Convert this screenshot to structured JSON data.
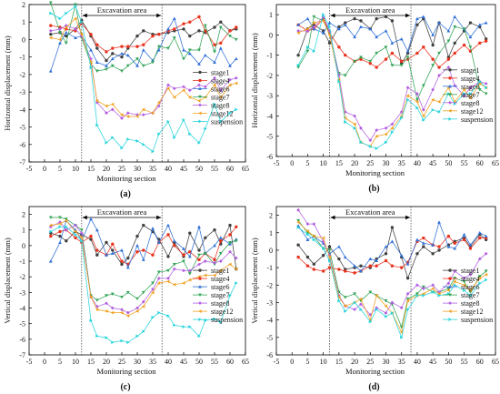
{
  "figure": {
    "series_colors": [
      "#404040",
      "#e8321e",
      "#2f6fd6",
      "#33a457",
      "#b25fe0",
      "#f0a020",
      "#28d4dc"
    ]
  },
  "chart_data": [
    {
      "type": "line",
      "panel_label": "(a)",
      "xlabel": "Monitoring section",
      "ylabel": "Horizontal displacement (mm)",
      "xlim": [
        -5,
        65
      ],
      "ylim": [
        -7,
        2
      ],
      "xticks": [
        -5,
        0,
        5,
        10,
        15,
        20,
        25,
        30,
        35,
        40,
        45,
        50,
        55,
        60,
        65
      ],
      "yticks": [
        -7,
        -6,
        -5,
        -4,
        -3,
        -2,
        -1,
        0,
        1,
        2
      ],
      "annotation": "Excavation area",
      "excavation_bounds": [
        12,
        38
      ],
      "legend_position": "right",
      "x": [
        2,
        5,
        7,
        10,
        12,
        15,
        17,
        20,
        22,
        25,
        27,
        30,
        32,
        35,
        37,
        40,
        42,
        45,
        47,
        50,
        52,
        55,
        57,
        60,
        62
      ],
      "series": [
        {
          "name": "stage1",
          "values": [
            0.3,
            0.4,
            0.2,
            0.6,
            1.1,
            0.2,
            -0.5,
            -1.2,
            -0.8,
            -1.0,
            -0.5,
            0.2,
            0.5,
            0.3,
            0.3,
            0.4,
            0.5,
            0.6,
            0.2,
            0.5,
            0.4,
            0.7,
            1.0,
            0.5,
            0.6
          ]
        },
        {
          "name": "stage4",
          "values": [
            0.8,
            0.7,
            0.6,
            0.5,
            0.9,
            0.3,
            -0.3,
            -0.7,
            -0.5,
            -0.4,
            -0.4,
            -0.4,
            -0.3,
            0.2,
            0.3,
            0.5,
            0.6,
            0.9,
            1.0,
            1.3,
            0.5,
            -0.3,
            -0.2,
            0.5,
            0.7
          ]
        },
        {
          "name": "stage6",
          "values": [
            -1.8,
            -0.2,
            0.4,
            0.1,
            0.2,
            -0.6,
            -1.3,
            -1.5,
            -1.1,
            -0.8,
            -0.9,
            -1.5,
            -0.6,
            -1.2,
            -0.6,
            0.6,
            1.2,
            -0.6,
            -0.8,
            -1.4,
            -0.9,
            -1.3,
            -0.5,
            -1.5,
            -1.1
          ]
        },
        {
          "name": "stage7",
          "values": [
            2.1,
            0.4,
            -0.2,
            2.0,
            0.1,
            -1.4,
            -1.8,
            -1.7,
            -1.5,
            -1.8,
            -1.5,
            -1.1,
            -1.5,
            -1.3,
            -0.4,
            -0.5,
            0.1,
            -1.1,
            -0.6,
            -0.6,
            0.8,
            -0.7,
            0.7,
            0.2,
            0.0
          ]
        },
        {
          "name": "stage8",
          "values": [
            0.5,
            0.6,
            0.8,
            0.6,
            0.2,
            -1.1,
            -3.6,
            -4.2,
            -4.0,
            -4.5,
            -4.2,
            -4.3,
            -4.3,
            -4.2,
            -3.8,
            -2.6,
            -2.8,
            -2.7,
            -2.9,
            -2.6,
            -2.7,
            -2.2,
            -2.9,
            -2.3,
            -2.2
          ]
        },
        {
          "name": "stage12",
          "values": [
            0.1,
            0.0,
            0.7,
            1.2,
            0.3,
            -1.3,
            -3.5,
            -3.8,
            -3.7,
            -4.3,
            -4.4,
            -4.4,
            -4.0,
            -4.2,
            -3.6,
            -2.8,
            -3.3,
            -2.9,
            -3.3,
            -3.5,
            -3.3,
            -2.6,
            -3.3,
            -2.6,
            -2.5
          ]
        },
        {
          "name": "suspension",
          "values": [
            1.5,
            1.2,
            1.5,
            1.9,
            1.0,
            -1.6,
            -4.9,
            -5.9,
            -5.6,
            -6.2,
            -5.7,
            -5.8,
            -6.0,
            -6.4,
            -5.4,
            -4.7,
            -5.6,
            -4.6,
            -5.4,
            -5.9,
            -5.1,
            -3.7,
            -4.7,
            -4.2,
            -4.0
          ]
        }
      ]
    },
    {
      "type": "line",
      "panel_label": "(b)",
      "xlabel": "Monitoring section",
      "ylabel": "Horizontal displacement (mm)",
      "xlim": [
        -5,
        65
      ],
      "ylim": [
        -6,
        1.5
      ],
      "xticks": [
        -5,
        0,
        5,
        10,
        15,
        20,
        25,
        30,
        35,
        40,
        45,
        50,
        55,
        60,
        65
      ],
      "yticks": [
        -6,
        -5,
        -4,
        -3,
        -2,
        -1,
        0,
        1
      ],
      "annotation": "Excavation area",
      "excavation_bounds": [
        12,
        38
      ],
      "legend_position": "right",
      "x": [
        2,
        5,
        7,
        10,
        12,
        15,
        17,
        20,
        22,
        25,
        27,
        30,
        32,
        35,
        37,
        40,
        42,
        45,
        47,
        50,
        52,
        55,
        57,
        60,
        62
      ],
      "series": [
        {
          "name": "stage1",
          "values": [
            -1.0,
            0.3,
            0.5,
            0.2,
            -0.4,
            0.4,
            0.6,
            0.8,
            0.7,
            0.3,
            0.8,
            0.9,
            0.7,
            -1.4,
            -0.9,
            0.5,
            0.8,
            -0.5,
            0.6,
            -1.1,
            -0.4,
            0.2,
            0.6,
            0.4,
            -0.2
          ]
        },
        {
          "name": "stage4",
          "values": [
            0.5,
            0.2,
            0.3,
            0.8,
            0.1,
            -0.6,
            -1.0,
            -1.3,
            -1.2,
            -1.4,
            -1.6,
            -1.2,
            -0.9,
            -1.3,
            -1.2,
            -0.9,
            -0.6,
            -1.2,
            -1.6,
            -1.2,
            -0.9,
            -0.5,
            -0.8,
            -0.4,
            -0.3
          ]
        },
        {
          "name": "stage6",
          "values": [
            0.5,
            0.8,
            0.3,
            0.1,
            0.6,
            0.3,
            0.5,
            -0.1,
            0.4,
            0.3,
            -0.1,
            0.2,
            -0.4,
            -0.2,
            -0.8,
            0.8,
            0.9,
            0.0,
            0.6,
            0.2,
            0.9,
            0.3,
            -0.1,
            0.5,
            0.6
          ]
        },
        {
          "name": "stage7",
          "values": [
            -1.6,
            -0.8,
            0.9,
            0.7,
            0.1,
            -1.9,
            -2.0,
            -1.3,
            -1.1,
            -1.3,
            -0.9,
            -0.6,
            -1.5,
            -1.5,
            -1.1,
            -3.2,
            -2.5,
            -1.5,
            -0.9,
            -0.3,
            0.4,
            0.3,
            -0.6,
            -2.7,
            -2.9
          ]
        },
        {
          "name": "stage8",
          "values": [
            0.2,
            0.2,
            0.4,
            0.9,
            0.2,
            -2.0,
            -3.8,
            -4.0,
            -4.6,
            -5.2,
            -4.7,
            -4.6,
            -4.4,
            -3.8,
            -2.6,
            -2.9,
            -3.7,
            -2.7,
            -2.0,
            -1.6,
            -2.5,
            -3.0,
            -2.6,
            -2.3,
            -2.4
          ]
        },
        {
          "name": "stage12",
          "values": [
            0.1,
            0.3,
            0.6,
            0.7,
            0.0,
            -2.2,
            -4.1,
            -4.4,
            -5.3,
            -5.5,
            -5.0,
            -4.9,
            -4.6,
            -4.0,
            -3.0,
            -3.3,
            -4.0,
            -3.2,
            -3.3,
            -2.6,
            -3.3,
            -2.7,
            -3.1,
            -2.4,
            -2.6
          ]
        },
        {
          "name": "suspension",
          "values": [
            -1.5,
            -0.6,
            -0.8,
            1.0,
            0.4,
            -2.3,
            -4.3,
            -4.6,
            -5.3,
            -5.5,
            -5.6,
            -5.3,
            -4.8,
            -4.1,
            -3.2,
            -3.6,
            -4.2,
            -3.7,
            -3.8,
            -2.9,
            -3.4,
            -2.9,
            -2.9,
            -2.3,
            -2.6
          ]
        }
      ]
    },
    {
      "type": "line",
      "panel_label": "(c)",
      "xlabel": "Monitoring section",
      "ylabel": "Vertical displacement (mm)",
      "xlim": [
        -5,
        65
      ],
      "ylim": [
        -7,
        2.5
      ],
      "xticks": [
        -5,
        0,
        5,
        10,
        15,
        20,
        25,
        30,
        35,
        40,
        45,
        50,
        55,
        60,
        65
      ],
      "yticks": [
        -7,
        -6,
        -5,
        -4,
        -3,
        -2,
        -1,
        0,
        1,
        2
      ],
      "annotation": "Excavation area",
      "excavation_bounds": [
        12,
        38
      ],
      "legend_position": "right",
      "x": [
        2,
        5,
        7,
        10,
        12,
        15,
        17,
        20,
        22,
        25,
        27,
        30,
        32,
        35,
        37,
        40,
        42,
        45,
        47,
        50,
        52,
        55,
        57,
        60,
        62
      ],
      "series": [
        {
          "name": "stage1",
          "values": [
            0.8,
            0.6,
            0.3,
            0.9,
            0.7,
            0.4,
            -0.6,
            0.2,
            -0.3,
            -1.2,
            -0.8,
            0.6,
            1.3,
            0.9,
            0.4,
            -0.7,
            0.2,
            -0.7,
            0.8,
            -0.3,
            0.5,
            1.0,
            0.1,
            1.3,
            -1.5
          ]
        },
        {
          "name": "stage4",
          "values": [
            0.6,
            0.9,
            1.0,
            0.5,
            0.2,
            0.6,
            -0.3,
            -0.6,
            0.1,
            -1.0,
            -1.2,
            -0.4,
            -0.3,
            -0.6,
            0.2,
            0.7,
            0.0,
            -0.6,
            -0.4,
            -0.9,
            -0.5,
            -0.9,
            0.3,
            0.7,
            1.2
          ]
        },
        {
          "name": "stage6",
          "values": [
            -1.0,
            0.2,
            1.6,
            1.0,
            0.3,
            1.7,
            1.0,
            -0.6,
            -0.5,
            -0.3,
            -1.4,
            0.0,
            -0.9,
            1.1,
            0.2,
            1.3,
            0.3,
            -0.2,
            -0.7,
            1.2,
            -0.5,
            0.0,
            0.5,
            0.1,
            0.4
          ]
        },
        {
          "name": "stage7",
          "values": [
            1.8,
            1.8,
            1.7,
            1.3,
            1.0,
            -3.2,
            -3.5,
            -3.2,
            -3.1,
            -3.3,
            -3.0,
            -3.4,
            -3.0,
            -2.4,
            -1.7,
            -1.6,
            -1.2,
            -1.0,
            -1.8,
            -0.6,
            -0.5,
            -1.2,
            -0.5,
            0.2,
            0.3
          ]
        },
        {
          "name": "stage8",
          "values": [
            1.2,
            1.5,
            1.0,
            1.3,
            0.8,
            -3.3,
            -3.9,
            -3.7,
            -4.0,
            -4.1,
            -4.3,
            -4.0,
            -3.6,
            -2.8,
            -2.1,
            -2.1,
            -1.5,
            -1.6,
            -1.6,
            -1.2,
            -1.0,
            -1.1,
            -1.0,
            -0.4,
            -0.8
          ]
        },
        {
          "name": "stage12",
          "values": [
            1.3,
            1.4,
            1.6,
            0.9,
            0.5,
            -3.3,
            -4.1,
            -4.2,
            -4.3,
            -4.3,
            -4.5,
            -4.2,
            -3.9,
            -3.0,
            -2.4,
            -2.3,
            -2.5,
            -2.4,
            -2.2,
            -2.0,
            -1.9,
            -1.9,
            -1.6,
            -1.2,
            -1.5
          ]
        },
        {
          "name": "suspension",
          "values": [
            0.9,
            1.2,
            1.2,
            0.7,
            0.3,
            -4.8,
            -5.8,
            -5.9,
            -6.2,
            -6.1,
            -6.2,
            -5.8,
            -5.5,
            -4.6,
            -4.3,
            -4.5,
            -5.1,
            -5.2,
            -5.2,
            -5.8,
            -4.8,
            -4.7,
            -4.9,
            -3.2,
            -2.4
          ]
        }
      ]
    },
    {
      "type": "line",
      "panel_label": "(d)",
      "xlabel": "Monitoring section",
      "ylabel": "Vertical displacement (mm)",
      "xlim": [
        -5,
        65
      ],
      "ylim": [
        -6,
        2.5
      ],
      "xticks": [
        -5,
        0,
        5,
        10,
        15,
        20,
        25,
        30,
        35,
        40,
        45,
        50,
        55,
        60,
        65
      ],
      "yticks": [
        -6,
        -5,
        -4,
        -3,
        -2,
        -1,
        0,
        1,
        2
      ],
      "annotation": "Excavation area",
      "excavation_bounds": [
        12,
        38
      ],
      "legend_position": "right",
      "x": [
        2,
        5,
        7,
        10,
        12,
        15,
        17,
        20,
        22,
        25,
        27,
        30,
        32,
        35,
        37,
        40,
        42,
        45,
        47,
        50,
        52,
        55,
        57,
        60,
        62
      ],
      "series": [
        {
          "name": "stage1",
          "values": [
            0.3,
            -0.4,
            -0.8,
            -0.3,
            0.2,
            -0.5,
            -1.1,
            -1.0,
            -0.9,
            -1.0,
            -0.5,
            -0.2,
            1.3,
            -0.4,
            -1.6,
            -0.2,
            0.2,
            -0.2,
            0.0,
            0.3,
            0.5,
            0.7,
            0.2,
            0.9,
            0.6
          ]
        },
        {
          "name": "stage4",
          "values": [
            -0.4,
            -0.9,
            -1.1,
            -1.2,
            -1.0,
            -1.1,
            -1.2,
            -1.3,
            -1.2,
            -0.9,
            -0.9,
            -0.6,
            -0.9,
            -1.0,
            -0.7,
            0.5,
            0.7,
            0.3,
            0.2,
            0.8,
            0.4,
            0.6,
            0.1,
            0.7,
            0.7
          ]
        },
        {
          "name": "stage6",
          "values": [
            1.4,
            0.6,
            0.8,
            0.4,
            -0.2,
            0.2,
            -0.4,
            -0.9,
            -1.2,
            -0.5,
            -0.6,
            0.2,
            0.5,
            -0.3,
            -0.8,
            0.6,
            0.4,
            0.3,
            1.6,
            0.2,
            0.1,
            0.9,
            0.3,
            1.0,
            0.8
          ]
        },
        {
          "name": "stage7",
          "values": [
            1.7,
            1.0,
            0.8,
            0.1,
            0.0,
            -2.4,
            -2.7,
            -2.5,
            -2.9,
            -2.4,
            -2.6,
            -2.9,
            -3.1,
            -4.4,
            -2.8,
            -2.5,
            -2.1,
            -2.4,
            -2.4,
            -2.2,
            -1.6,
            -1.8,
            -2.4,
            -1.5,
            -1.2
          ]
        },
        {
          "name": "stage8",
          "values": [
            2.3,
            1.5,
            1.5,
            0.5,
            -0.3,
            -2.6,
            -3.2,
            -3.4,
            -3.1,
            -3.7,
            -3.3,
            -3.6,
            -3.0,
            -3.3,
            -2.5,
            -2.0,
            -2.2,
            -2.0,
            -2.4,
            -1.9,
            -1.2,
            -1.6,
            -1.4,
            -0.5,
            -0.2
          ]
        },
        {
          "name": "stage12",
          "values": [
            1.6,
            1.1,
            0.8,
            0.7,
            -0.4,
            -2.7,
            -3.2,
            -3.0,
            -2.8,
            -4.0,
            -2.6,
            -3.2,
            -3.6,
            -4.7,
            -2.9,
            -2.6,
            -2.5,
            -2.2,
            -2.5,
            -2.3,
            -1.8,
            -2.0,
            -2.3,
            -1.6,
            -1.4
          ]
        },
        {
          "name": "suspension",
          "values": [
            1.3,
            0.9,
            0.6,
            0.1,
            -0.6,
            -2.9,
            -3.5,
            -3.0,
            -3.4,
            -4.1,
            -3.4,
            -3.8,
            -3.6,
            -5.0,
            -3.4,
            -2.6,
            -2.6,
            -2.4,
            -2.6,
            -2.5,
            -2.0,
            -2.3,
            -2.6,
            -1.9,
            -1.7
          ]
        }
      ]
    }
  ]
}
